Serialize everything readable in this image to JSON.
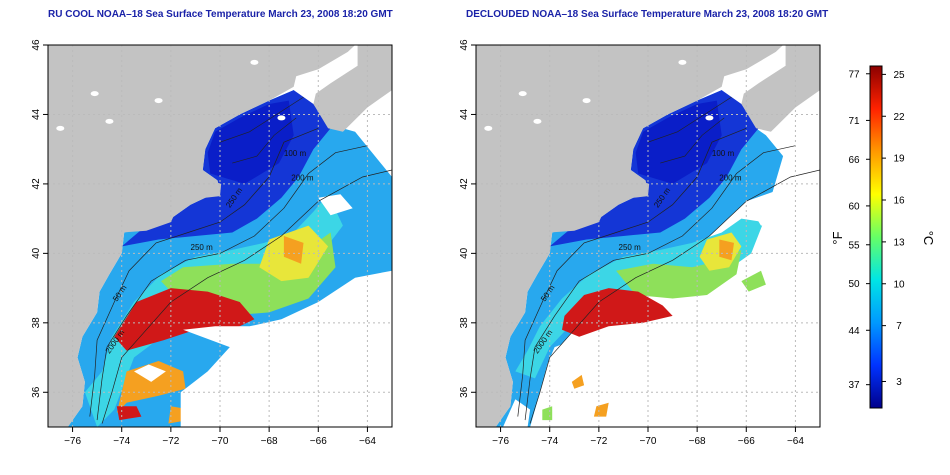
{
  "panels": [
    {
      "title": "RU COOL NOAA–18 Sea Surface Temperature March 23, 2008 18:20 GMT",
      "depth_labels": [
        "100 m",
        "200 m",
        "250 m",
        "50 m",
        "2000 m",
        "250 m"
      ]
    },
    {
      "title": "DECLOUDED NOAA–18 Sea Surface Temperature March 23, 2008 18:20 GMT",
      "depth_labels": [
        "100 m",
        "200 m",
        "250 m",
        "50 m",
        "2000 m",
        "250 m"
      ]
    }
  ],
  "axes": {
    "x_ticks": [
      "−76",
      "−74",
      "−72",
      "−70",
      "−68",
      "−66",
      "−64"
    ],
    "y_ticks": [
      "36",
      "38",
      "40",
      "42",
      "44",
      "46"
    ]
  },
  "colorbar": {
    "fahrenheit_label": "°F",
    "celsius_label": "°C",
    "fahrenheit_ticks": [
      "77",
      "71",
      "66",
      "60",
      "55",
      "50",
      "44",
      "37"
    ],
    "celsius_ticks": [
      "25",
      "22",
      "19",
      "16",
      "13",
      "10",
      "7",
      "3"
    ],
    "colors": [
      "#00008b",
      "#0033ff",
      "#0099ff",
      "#00e5e5",
      "#66ff66",
      "#ffff00",
      "#ff9900",
      "#ff2200",
      "#8b0000"
    ]
  },
  "map_colors": {
    "land": "#c3c3c3",
    "cloud": "#ffffff",
    "cold": "#1436d6",
    "deep_cold": "#0a1ec8",
    "mid": "#28a8ee",
    "cyan": "#3cd6e6",
    "green": "#8ee05a",
    "yellow": "#e8e63a",
    "orange": "#f5a020",
    "red": "#d01818"
  }
}
